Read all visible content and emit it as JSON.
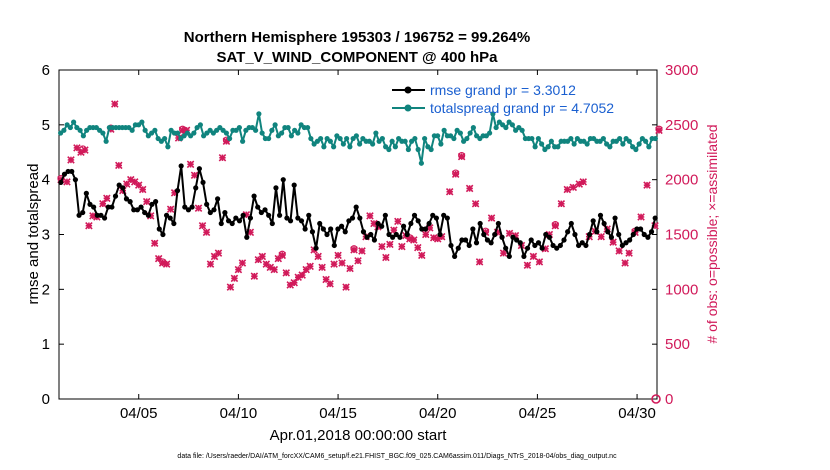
{
  "chart_data": {
    "type": "line",
    "title_line1": "Northern Hemisphere 195303 / 196752 = 99.264%",
    "title_line2": "SAT_V_WIND_COMPONENT @ 400 hPa",
    "xlabel": "Apr.01,2018 00:00:00 start",
    "ylabel_left": "rmse and totalspread",
    "ylabel_right": "# of obs: o=possible; ×=assimilated",
    "footnote": "data file: /Users/raeder/DAI/ATM_forcXX/CAM6_setup/f.e21.FHIST_BGC.f09_025.CAM6assim.011/Diags_NTrS_2018-04/obs_diag_output.nc",
    "xlim": [
      1,
      31
    ],
    "ylim_left": [
      0,
      6
    ],
    "ylim_right": [
      0,
      3000
    ],
    "xticks": [
      5,
      10,
      15,
      20,
      25,
      30
    ],
    "xtick_labels": [
      "04/05",
      "04/10",
      "04/15",
      "04/20",
      "04/25",
      "04/30"
    ],
    "yticks_left": [
      "0",
      "1",
      "2",
      "3",
      "4",
      "5",
      "6"
    ],
    "yticks_right": [
      "0",
      "500",
      "1000",
      "1500",
      "2000",
      "2500",
      "3000"
    ],
    "colors": {
      "rmse": "#000000",
      "spread": "#10847e",
      "obs": "#d11a5a",
      "legend_text": "#1a5fd0"
    },
    "series": [
      {
        "name": "rmse grand pr = 3.3012",
        "values": [
          3.95,
          4.1,
          4.15,
          4.15,
          4.0,
          3.35,
          3.4,
          3.75,
          3.55,
          3.5,
          3.35,
          3.35,
          3.3,
          3.5,
          3.5,
          3.7,
          3.9,
          3.85,
          3.65,
          3.6,
          3.45,
          3.45,
          3.5,
          3.4,
          3.35,
          3.55,
          3.6,
          3.1,
          3.0,
          3.35,
          3.3,
          3.2,
          3.8,
          4.25,
          3.5,
          3.45,
          3.5,
          3.85,
          4.2,
          3.95,
          3.55,
          3.4,
          3.45,
          3.65,
          3.2,
          3.4,
          3.25,
          3.2,
          3.3,
          3.25,
          3.35,
          2.95,
          3.3,
          3.7,
          3.5,
          3.4,
          3.45,
          3.35,
          3.2,
          3.85,
          3.35,
          4.0,
          3.3,
          3.25,
          3.9,
          3.3,
          3.25,
          3.1,
          3.35,
          3.05,
          2.75,
          3.2,
          3.1,
          3.0,
          3.1,
          2.8,
          3.1,
          3.15,
          3.05,
          3.25,
          3.3,
          3.5,
          3.3,
          3.05,
          2.95,
          3.0,
          2.9,
          3.2,
          3.15,
          3.35,
          3.0,
          2.95,
          3.0,
          2.95,
          3.15,
          3.0,
          3.2,
          3.35,
          3.25,
          3.1,
          3.1,
          3.2,
          3.35,
          3.3,
          3.0,
          3.35,
          3.3,
          2.8,
          2.6,
          2.75,
          2.9,
          2.9,
          2.8,
          3.1,
          2.85,
          3.2,
          3.0,
          2.9,
          2.85,
          3.0,
          3.2,
          2.95,
          2.75,
          2.6,
          2.95,
          2.9,
          2.85,
          2.6,
          2.75,
          2.9,
          2.8,
          2.85,
          2.75,
          3.0,
          2.95,
          2.8,
          2.75,
          2.8,
          2.9,
          3.05,
          3.2,
          3.0,
          2.8,
          2.85,
          2.8,
          3.0,
          3.25,
          3.05,
          3.35,
          3.2,
          3.05,
          2.95,
          3.3,
          3.0,
          2.8,
          2.85,
          2.9,
          3.0,
          3.1,
          3.1,
          3.0,
          2.95,
          3.05,
          3.3
        ]
      },
      {
        "name": "totalspread grand pr = 4.7052",
        "values": [
          4.85,
          4.9,
          5.0,
          4.95,
          5.05,
          4.95,
          4.9,
          4.8,
          4.9,
          4.95,
          4.95,
          4.95,
          4.9,
          4.85,
          4.7,
          4.95,
          4.95,
          4.95,
          4.95,
          4.95,
          4.95,
          4.95,
          4.9,
          5.0,
          5.0,
          5.05,
          4.9,
          4.8,
          4.85,
          4.9,
          4.75,
          4.7,
          4.75,
          4.6,
          4.9,
          4.85,
          4.85,
          4.75,
          4.8,
          4.85,
          4.8,
          4.85,
          4.95,
          5.0,
          4.8,
          4.85,
          4.9,
          4.85,
          4.9,
          4.95,
          4.9,
          4.85,
          4.75,
          4.9,
          4.9,
          4.95,
          4.7,
          4.9,
          4.95,
          4.95,
          4.9,
          5.2,
          4.85,
          4.75,
          4.75,
          4.9,
          5.0,
          4.8,
          4.85,
          4.95,
          4.95,
          4.8,
          4.9,
          4.85,
          5.0,
          4.95,
          4.95,
          4.75,
          4.65,
          4.7,
          4.75,
          4.6,
          4.75,
          4.7,
          4.6,
          4.8,
          4.75,
          4.65,
          4.75,
          4.6,
          4.75,
          4.8,
          4.65,
          4.75,
          4.7,
          4.7,
          4.65,
          4.85,
          4.7,
          4.75,
          4.6,
          4.55,
          4.7,
          4.6,
          4.75,
          4.7,
          4.7,
          4.55,
          4.7,
          4.75,
          4.55,
          4.3,
          4.75,
          4.6,
          4.55,
          4.8,
          4.8,
          4.65,
          4.9,
          4.8,
          4.8,
          4.75,
          4.9,
          4.85,
          4.7,
          4.75,
          4.85,
          4.95,
          4.8,
          4.75,
          4.8,
          4.8,
          4.85,
          5.2,
          4.95,
          5.05,
          5.0,
          4.95,
          5.05,
          5.0,
          4.9,
          4.95,
          4.9,
          4.75,
          4.75,
          4.75,
          4.6,
          4.75,
          4.65,
          4.55,
          4.6,
          4.7,
          4.6,
          4.6,
          4.7,
          4.7,
          4.7,
          4.75,
          4.65,
          4.75,
          4.7,
          4.7,
          4.65,
          4.75,
          4.75,
          4.7,
          4.7,
          4.75,
          4.65,
          4.6,
          4.7,
          4.7,
          4.75,
          4.65,
          4.75,
          4.7,
          4.6,
          4.55,
          4.65,
          4.75,
          4.7,
          4.6,
          4.75,
          4.75
        ]
      }
    ],
    "obs_assimilated": [
      [
        1.1,
        2000
      ],
      [
        1.4,
        1980
      ],
      [
        1.6,
        2180
      ],
      [
        1.9,
        2290
      ],
      [
        2.1,
        2250
      ],
      [
        2.3,
        2270
      ],
      [
        2.5,
        1580
      ],
      [
        2.7,
        1670
      ],
      [
        2.9,
        1660
      ],
      [
        3.2,
        1780
      ],
      [
        3.4,
        1830
      ],
      [
        3.6,
        2460
      ],
      [
        3.8,
        2690
      ],
      [
        4.0,
        2130
      ],
      [
        4.2,
        1900
      ],
      [
        4.4,
        1960
      ],
      [
        4.6,
        2000
      ],
      [
        4.8,
        1980
      ],
      [
        5.0,
        1950
      ],
      [
        5.2,
        1910
      ],
      [
        5.4,
        1800
      ],
      [
        5.6,
        1670
      ],
      [
        5.8,
        1420
      ],
      [
        6.0,
        1280
      ],
      [
        6.2,
        1240
      ],
      [
        6.4,
        1230
      ],
      [
        6.6,
        1730
      ],
      [
        6.8,
        1880
      ],
      [
        7.0,
        2380
      ],
      [
        7.2,
        2450
      ],
      [
        7.4,
        2450
      ],
      [
        7.6,
        2140
      ],
      [
        7.8,
        2040
      ],
      [
        8.0,
        1740
      ],
      [
        8.2,
        1580
      ],
      [
        8.4,
        1520
      ],
      [
        8.6,
        1230
      ],
      [
        8.8,
        1300
      ],
      [
        9.0,
        1330
      ],
      [
        9.2,
        2200
      ],
      [
        9.4,
        2350
      ],
      [
        9.6,
        1020
      ],
      [
        9.8,
        1100
      ],
      [
        10.0,
        1180
      ],
      [
        10.2,
        1240
      ],
      [
        10.4,
        1680
      ],
      [
        10.6,
        1520
      ],
      [
        10.8,
        1120
      ],
      [
        11.0,
        1270
      ],
      [
        11.2,
        1300
      ],
      [
        11.4,
        1230
      ],
      [
        11.6,
        1200
      ],
      [
        11.8,
        1180
      ],
      [
        12.0,
        1280
      ],
      [
        12.2,
        1310
      ],
      [
        12.4,
        1150
      ],
      [
        12.6,
        1040
      ],
      [
        12.8,
        1060
      ],
      [
        13.0,
        1110
      ],
      [
        13.2,
        1130
      ],
      [
        13.4,
        1180
      ],
      [
        13.6,
        1210
      ],
      [
        13.8,
        1360
      ],
      [
        14.0,
        1300
      ],
      [
        14.2,
        1200
      ],
      [
        14.4,
        1090
      ],
      [
        14.6,
        1050
      ],
      [
        14.8,
        1230
      ],
      [
        15.0,
        1310
      ],
      [
        15.2,
        1240
      ],
      [
        15.4,
        1020
      ],
      [
        15.6,
        1190
      ],
      [
        15.8,
        1360
      ],
      [
        16.0,
        1260
      ],
      [
        16.2,
        1350
      ],
      [
        16.4,
        1480
      ],
      [
        16.6,
        1670
      ],
      [
        16.8,
        1600
      ],
      [
        17.0,
        1570
      ],
      [
        17.2,
        1390
      ],
      [
        17.4,
        1290
      ],
      [
        17.6,
        1410
      ],
      [
        17.8,
        1540
      ],
      [
        18.0,
        1620
      ],
      [
        18.2,
        1390
      ],
      [
        18.4,
        1490
      ],
      [
        18.6,
        1460
      ],
      [
        18.8,
        1450
      ],
      [
        19.0,
        1380
      ],
      [
        19.2,
        1310
      ],
      [
        19.4,
        1500
      ],
      [
        19.6,
        1560
      ],
      [
        19.8,
        1470
      ],
      [
        20.0,
        1460
      ],
      [
        20.2,
        1480
      ],
      [
        20.6,
        1890
      ],
      [
        20.9,
        2050
      ],
      [
        21.2,
        2210
      ],
      [
        21.6,
        1920
      ],
      [
        21.9,
        1780
      ],
      [
        22.1,
        1250
      ],
      [
        22.4,
        1520
      ],
      [
        22.7,
        1650
      ],
      [
        23.0,
        1520
      ],
      [
        23.3,
        1330
      ],
      [
        23.6,
        1510
      ],
      [
        23.9,
        1490
      ],
      [
        24.2,
        1400
      ],
      [
        24.5,
        1220
      ],
      [
        24.8,
        1300
      ],
      [
        25.1,
        1250
      ],
      [
        25.4,
        1370
      ],
      [
        25.6,
        1500
      ],
      [
        25.9,
        1580
      ],
      [
        26.2,
        1780
      ],
      [
        26.5,
        1910
      ],
      [
        26.8,
        1930
      ],
      [
        27.1,
        1960
      ],
      [
        27.3,
        1980
      ],
      [
        27.6,
        1480
      ],
      [
        27.9,
        1530
      ],
      [
        28.2,
        1480
      ],
      [
        28.5,
        1550
      ],
      [
        28.8,
        1430
      ],
      [
        29.1,
        1350
      ],
      [
        29.4,
        1240
      ],
      [
        29.6,
        1330
      ],
      [
        29.9,
        1520
      ],
      [
        30.2,
        1660
      ],
      [
        30.5,
        1950
      ],
      [
        30.9,
        1580
      ],
      [
        31.1,
        2450
      ]
    ],
    "obs_possible": [
      [
        1.1,
        2010
      ],
      [
        2.2,
        2280
      ],
      [
        3.6,
        2470
      ],
      [
        6.2,
        1250
      ],
      [
        7.2,
        2460
      ],
      [
        9.4,
        2360
      ],
      [
        12.2,
        1320
      ],
      [
        15.8,
        1370
      ],
      [
        18.6,
        1470
      ],
      [
        20.9,
        2060
      ],
      [
        21.2,
        2220
      ],
      [
        22.4,
        1530
      ],
      [
        25.9,
        1590
      ],
      [
        29.9,
        1530
      ],
      [
        31.1,
        2460
      ]
    ]
  }
}
